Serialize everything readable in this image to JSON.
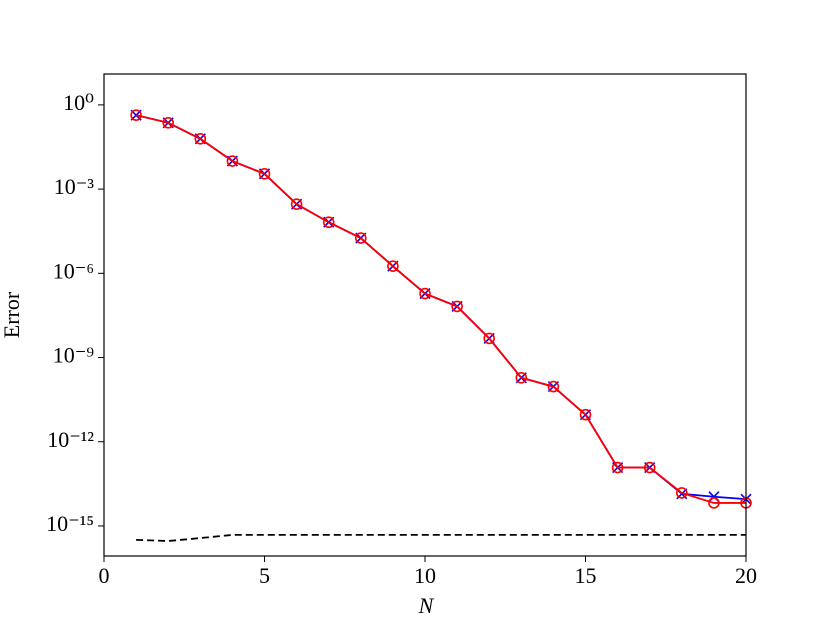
{
  "chart_data": {
    "type": "line",
    "xlabel": "N",
    "ylabel": "Error",
    "x": [
      1,
      2,
      3,
      4,
      5,
      6,
      7,
      8,
      9,
      10,
      11,
      12,
      13,
      14,
      15,
      16,
      17,
      18,
      19,
      20
    ],
    "series": [
      {
        "color": "#0000ff",
        "marker": "x",
        "dashed": false,
        "values": [
          0.43,
          0.23,
          0.062,
          0.01,
          0.0035,
          0.00029,
          6.6e-05,
          1.8e-05,
          1.8e-06,
          1.9e-07,
          6.6e-08,
          4.8e-09,
          1.9e-10,
          9.2e-11,
          9.2e-12,
          1.2e-13,
          1.2e-13,
          1.4e-14,
          1.1e-14,
          9e-15
        ]
      },
      {
        "color": "#ff0000",
        "marker": "o",
        "dashed": false,
        "values": [
          0.43,
          0.23,
          0.062,
          0.01,
          0.0035,
          0.00029,
          6.6e-05,
          1.8e-05,
          1.8e-06,
          1.9e-07,
          6.6e-08,
          4.8e-09,
          1.9e-10,
          9.2e-11,
          9.2e-12,
          1.2e-13,
          1.2e-13,
          1.5e-14,
          6.6e-15,
          6.6e-15
        ]
      },
      {
        "color": "#000000",
        "marker": null,
        "dashed": true,
        "values": [
          3.2e-16,
          2.9e-16,
          3.7e-16,
          4.8e-16,
          4.8e-16,
          4.8e-16,
          4.8e-16,
          4.8e-16,
          4.8e-16,
          4.8e-16,
          4.8e-16,
          4.8e-16,
          4.8e-16,
          4.8e-16,
          4.8e-16,
          4.8e-16,
          4.8e-16,
          4.8e-16,
          4.8e-16,
          4.8e-16
        ]
      }
    ],
    "xlim": [
      0,
      20
    ],
    "xticks": [
      0,
      5,
      10,
      15,
      20
    ],
    "ylim": [
      8.5e-17,
      12.6
    ],
    "log_y": true,
    "yticks": [
      {
        "value": 1,
        "label": "10⁰"
      },
      {
        "value": 0.001,
        "label": "10⁻³"
      },
      {
        "value": 1e-06,
        "label": "10⁻⁶"
      },
      {
        "value": 1e-09,
        "label": "10⁻⁹"
      },
      {
        "value": 1e-12,
        "label": "10⁻¹²"
      },
      {
        "value": 1e-15,
        "label": "10⁻¹⁵"
      }
    ]
  }
}
